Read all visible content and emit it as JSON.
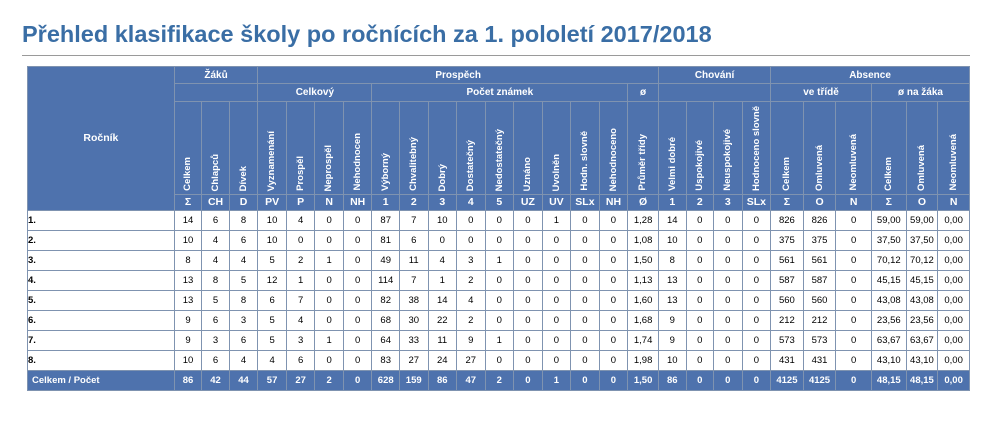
{
  "title": "Přehled klasifikace školy po ročnících za 1. pololetí 2017/2018",
  "headers": {
    "rocnik": "Ročník",
    "groups": {
      "zaku": "Žáků",
      "prospech": "Prospěch",
      "chovani": "Chování",
      "absence": "Absence"
    },
    "subgroups": {
      "celkovy": "Celkový",
      "pocet_znamek": "Počet známek",
      "prumer": "ø",
      "ve_tride": "ve třídě",
      "na_zaka": "ø na žáka"
    },
    "cols": [
      {
        "name": "Celkem",
        "sym": "Σ"
      },
      {
        "name": "Chlapců",
        "sym": "CH"
      },
      {
        "name": "Dívek",
        "sym": "D"
      },
      {
        "name": "Vyznamenání",
        "sym": "PV"
      },
      {
        "name": "Prospěl",
        "sym": "P"
      },
      {
        "name": "Neprospěl",
        "sym": "N"
      },
      {
        "name": "Nehodnocen",
        "sym": "NH"
      },
      {
        "name": "Výborný",
        "sym": "1"
      },
      {
        "name": "Chvalitebný",
        "sym": "2"
      },
      {
        "name": "Dobrý",
        "sym": "3"
      },
      {
        "name": "Dostatečný",
        "sym": "4"
      },
      {
        "name": "Nedostatečný",
        "sym": "5"
      },
      {
        "name": "Uznáno",
        "sym": "UZ"
      },
      {
        "name": "Uvolněn",
        "sym": "UV"
      },
      {
        "name": "Hodn. slovně",
        "sym": "SLx"
      },
      {
        "name": "Nehodnoceno",
        "sym": "NH"
      },
      {
        "name": "Průměr třídy",
        "sym": "Ø"
      },
      {
        "name": "Velmi dobré",
        "sym": "1"
      },
      {
        "name": "Uspokojivé",
        "sym": "2"
      },
      {
        "name": "Neuspokojivé",
        "sym": "3"
      },
      {
        "name": "Hodnoceno slovně",
        "sym": "SLx"
      },
      {
        "name": "Celkem",
        "sym": "Σ"
      },
      {
        "name": "Omluvená",
        "sym": "O"
      },
      {
        "name": "Neomluvená",
        "sym": "N"
      },
      {
        "name": "Celkem",
        "sym": "Σ"
      },
      {
        "name": "Omluvená",
        "sym": "O"
      },
      {
        "name": "Neomluvená",
        "sym": "N"
      }
    ]
  },
  "rows": [
    {
      "label": "1.",
      "values": [
        "14",
        "6",
        "8",
        "10",
        "4",
        "0",
        "0",
        "87",
        "7",
        "10",
        "0",
        "0",
        "0",
        "1",
        "0",
        "0",
        "1,28",
        "14",
        "0",
        "0",
        "0",
        "826",
        "826",
        "0",
        "59,00",
        "59,00",
        "0,00"
      ]
    },
    {
      "label": "2.",
      "values": [
        "10",
        "4",
        "6",
        "10",
        "0",
        "0",
        "0",
        "81",
        "6",
        "0",
        "0",
        "0",
        "0",
        "0",
        "0",
        "0",
        "1,08",
        "10",
        "0",
        "0",
        "0",
        "375",
        "375",
        "0",
        "37,50",
        "37,50",
        "0,00"
      ]
    },
    {
      "label": "3.",
      "values": [
        "8",
        "4",
        "4",
        "5",
        "2",
        "1",
        "0",
        "49",
        "11",
        "4",
        "3",
        "1",
        "0",
        "0",
        "0",
        "0",
        "1,50",
        "8",
        "0",
        "0",
        "0",
        "561",
        "561",
        "0",
        "70,12",
        "70,12",
        "0,00"
      ]
    },
    {
      "label": "4.",
      "values": [
        "13",
        "8",
        "5",
        "12",
        "1",
        "0",
        "0",
        "114",
        "7",
        "1",
        "2",
        "0",
        "0",
        "0",
        "0",
        "0",
        "1,13",
        "13",
        "0",
        "0",
        "0",
        "587",
        "587",
        "0",
        "45,15",
        "45,15",
        "0,00"
      ]
    },
    {
      "label": "5.",
      "values": [
        "13",
        "5",
        "8",
        "6",
        "7",
        "0",
        "0",
        "82",
        "38",
        "14",
        "4",
        "0",
        "0",
        "0",
        "0",
        "0",
        "1,60",
        "13",
        "0",
        "0",
        "0",
        "560",
        "560",
        "0",
        "43,08",
        "43,08",
        "0,00"
      ]
    },
    {
      "label": "6.",
      "values": [
        "9",
        "6",
        "3",
        "5",
        "4",
        "0",
        "0",
        "68",
        "30",
        "22",
        "2",
        "0",
        "0",
        "0",
        "0",
        "0",
        "1,68",
        "9",
        "0",
        "0",
        "0",
        "212",
        "212",
        "0",
        "23,56",
        "23,56",
        "0,00"
      ]
    },
    {
      "label": "7.",
      "values": [
        "9",
        "3",
        "6",
        "5",
        "3",
        "1",
        "0",
        "64",
        "33",
        "11",
        "9",
        "1",
        "0",
        "0",
        "0",
        "0",
        "1,74",
        "9",
        "0",
        "0",
        "0",
        "573",
        "573",
        "0",
        "63,67",
        "63,67",
        "0,00"
      ]
    },
    {
      "label": "8.",
      "values": [
        "10",
        "6",
        "4",
        "4",
        "6",
        "0",
        "0",
        "83",
        "27",
        "24",
        "27",
        "0",
        "0",
        "0",
        "0",
        "0",
        "1,98",
        "10",
        "0",
        "0",
        "0",
        "431",
        "431",
        "0",
        "43,10",
        "43,10",
        "0,00"
      ]
    }
  ],
  "total": {
    "label": "Celkem / Počet",
    "values": [
      "86",
      "42",
      "44",
      "57",
      "27",
      "2",
      "0",
      "628",
      "159",
      "86",
      "47",
      "2",
      "0",
      "1",
      "0",
      "0",
      "1,50",
      "86",
      "0",
      "0",
      "0",
      "4125",
      "4125",
      "0",
      "48,15",
      "48,15",
      "0,00"
    ]
  }
}
